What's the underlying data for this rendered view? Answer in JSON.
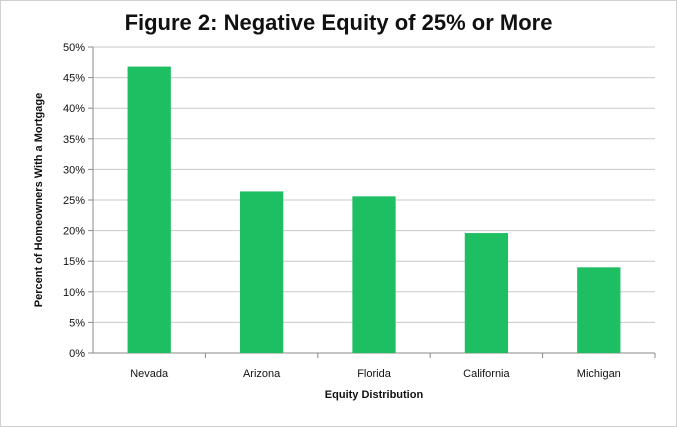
{
  "colors": {
    "bar": "#1ebf63",
    "grid": "#c8c8c8",
    "axis": "#8a8a8a",
    "text": "#111111"
  },
  "chart_data": {
    "type": "bar",
    "title": "Figure 2: Negative Equity of 25% or More",
    "xlabel": "Equity Distribution",
    "ylabel": "Percent of Homeowners With a Mortgage",
    "categories": [
      "Nevada",
      "Arizona",
      "Florida",
      "California",
      "Michigan"
    ],
    "values": [
      46.8,
      26.4,
      25.6,
      19.6,
      14.0
    ],
    "ylim": [
      0,
      50
    ],
    "yticks": [
      "0%",
      "5%",
      "10%",
      "15%",
      "20%",
      "25%",
      "30%",
      "35%",
      "40%",
      "45%",
      "50%"
    ],
    "grid": true,
    "legend": "none"
  }
}
